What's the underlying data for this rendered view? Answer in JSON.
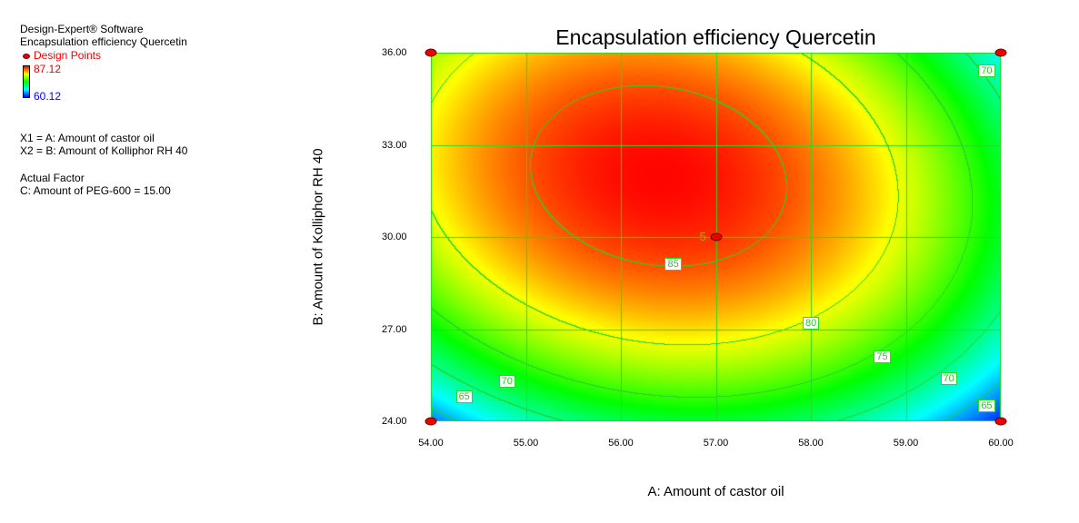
{
  "info": {
    "software": "Design-Expert® Software",
    "response": "Encapsulation efficiency Quercetin",
    "design_points_label": "Design Points",
    "color_max": "87.12",
    "color_min": "60.12",
    "x1": "X1 = A: Amount of castor oil",
    "x2": "X2 = B: Amount of Kolliphor RH 40",
    "actual_factor_heading": "Actual Factor",
    "actual_factor": "C: Amount of PEG-600 = 15.00"
  },
  "chart_data": {
    "type": "contour",
    "title": "Encapsulation efficiency Quercetin",
    "xlabel": "A: Amount of castor oil",
    "ylabel": "B: Amount of Kolliphor RH 40",
    "xlim": [
      54,
      60
    ],
    "ylim": [
      24,
      36
    ],
    "x_ticks": [
      "54.00",
      "55.00",
      "56.00",
      "57.00",
      "58.00",
      "59.00",
      "60.00"
    ],
    "y_ticks": [
      "24.00",
      "27.00",
      "30.00",
      "33.00",
      "36.00"
    ],
    "grid": true,
    "color_range": [
      60.12,
      87.12
    ],
    "colormap": [
      "#0000ff",
      "#00ffff",
      "#00ff00",
      "#ffff00",
      "#ff0000"
    ],
    "contour_levels": [
      "65",
      "70",
      "75",
      "80",
      "85"
    ],
    "contour_labels": [
      {
        "text": "85",
        "x": 56.55,
        "y": 29.1
      },
      {
        "text": "80",
        "x": 58.0,
        "y": 27.2
      },
      {
        "text": "75",
        "x": 58.75,
        "y": 26.1
      },
      {
        "text": "70",
        "x": 59.45,
        "y": 25.4
      },
      {
        "text": "70",
        "x": 59.85,
        "y": 35.4
      },
      {
        "text": "70",
        "x": 54.8,
        "y": 25.3
      },
      {
        "text": "65",
        "x": 54.35,
        "y": 24.8
      },
      {
        "text": "65",
        "x": 59.85,
        "y": 24.5
      }
    ],
    "design_points": [
      {
        "x": 54,
        "y": 36
      },
      {
        "x": 60,
        "y": 36
      },
      {
        "x": 57,
        "y": 30,
        "label": "5"
      },
      {
        "x": 54,
        "y": 24
      },
      {
        "x": 60,
        "y": 24
      }
    ]
  }
}
